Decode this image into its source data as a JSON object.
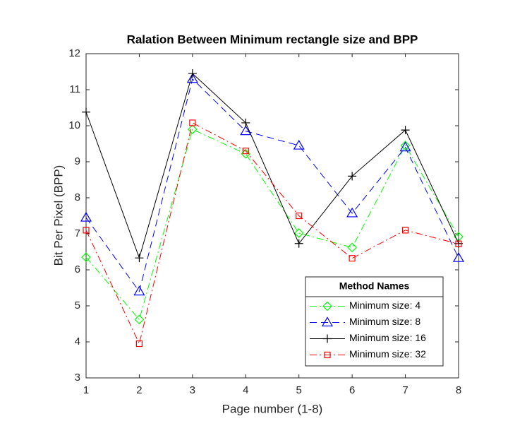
{
  "chart_data": {
    "type": "line",
    "title": "Ralation Between Minimum rectangle size and BPP",
    "xlabel": "Page number (1-8)",
    "ylabel": "Bit Per Pixel (BPP)",
    "x": [
      1,
      2,
      3,
      4,
      5,
      6,
      7,
      8
    ],
    "xlim": [
      1,
      8
    ],
    "xticks": [
      1,
      2,
      3,
      4,
      5,
      6,
      7,
      8
    ],
    "ylim": [
      3,
      12
    ],
    "yticks": [
      3,
      4,
      5,
      6,
      7,
      8,
      9,
      10,
      11,
      12
    ],
    "legend_title": "Method Names",
    "legend_loc": "southeast",
    "series": [
      {
        "name": "Minimum size: 4",
        "color": "#00ff00",
        "linestyle": "dashdot",
        "marker": "diamond",
        "values": [
          6.35,
          4.62,
          9.9,
          9.22,
          7.02,
          6.62,
          9.45,
          6.92
        ]
      },
      {
        "name": "Minimum size: 8",
        "color": "#0000ff",
        "linestyle": "dashed",
        "marker": "triangle",
        "values": [
          7.45,
          5.4,
          11.3,
          9.85,
          9.45,
          7.57,
          9.4,
          6.33
        ]
      },
      {
        "name": "Minimum size: 16",
        "color": "#000000",
        "linestyle": "solid",
        "marker": "plus",
        "values": [
          10.38,
          6.33,
          11.45,
          10.08,
          6.73,
          8.6,
          9.88,
          6.73
        ]
      },
      {
        "name": "Minimum size: 32",
        "color": "#ff0000",
        "linestyle": "dashdot",
        "marker": "square",
        "values": [
          7.1,
          3.95,
          10.08,
          9.3,
          7.5,
          6.32,
          7.1,
          6.72
        ]
      }
    ]
  }
}
